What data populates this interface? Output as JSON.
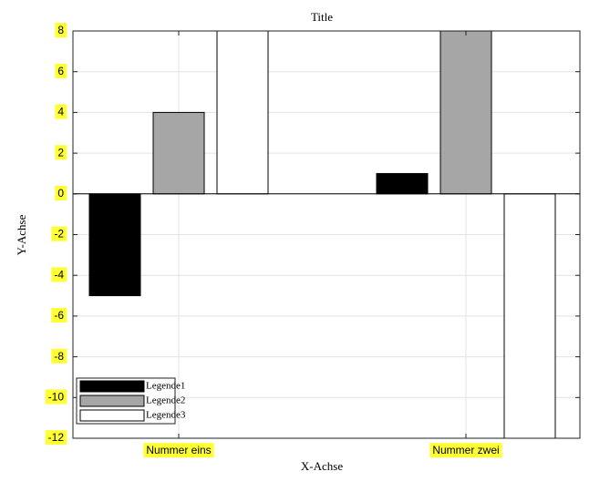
{
  "chart_data": {
    "type": "bar",
    "title": "Title",
    "xlabel": "X-Achse",
    "ylabel": "Y-Achse",
    "categories": [
      "Nummer eins",
      "Nummer zwei"
    ],
    "series": [
      {
        "name": "Legende1",
        "color": "#000000",
        "values": [
          -5,
          1
        ]
      },
      {
        "name": "Legende2",
        "color": "#a6a6a6",
        "values": [
          4,
          8
        ]
      },
      {
        "name": "Legende3",
        "color": "#ffffff",
        "values": [
          8,
          -12
        ]
      }
    ],
    "ylim": [
      -12,
      8
    ],
    "yticks": [
      -12,
      -10,
      -8,
      -6,
      -4,
      -2,
      0,
      2,
      4,
      6,
      8
    ],
    "grid": true,
    "legend": "lower left"
  }
}
